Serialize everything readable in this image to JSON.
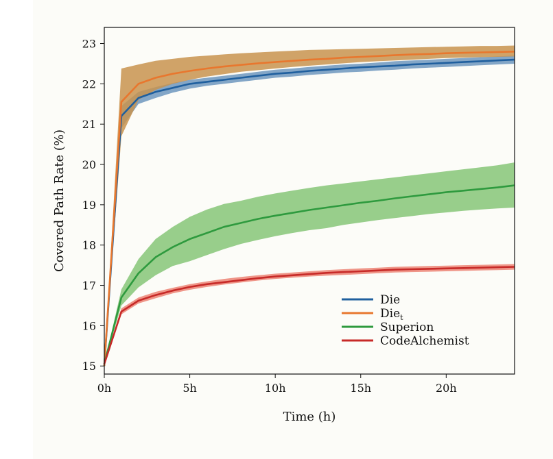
{
  "chart_data": {
    "type": "line",
    "xlabel": "Time (h)",
    "ylabel": "Covered Path Rate (%)",
    "xlim": [
      0,
      24
    ],
    "ylim": [
      14.8,
      23.4
    ],
    "x_ticks": [
      0,
      5,
      10,
      15,
      20
    ],
    "x_tick_labels": [
      "0h",
      "5h",
      "10h",
      "15h",
      "20h"
    ],
    "y_ticks": [
      15,
      16,
      17,
      18,
      19,
      20,
      21,
      22,
      23
    ],
    "y_tick_labels": [
      "15",
      "16",
      "17",
      "18",
      "19",
      "20",
      "21",
      "22",
      "23"
    ],
    "grid": false,
    "legend_position": "lower-right",
    "x": [
      0,
      1,
      2,
      3,
      4,
      5,
      6,
      7,
      8,
      9,
      10,
      11,
      12,
      13,
      14,
      15,
      16,
      17,
      18,
      19,
      20,
      21,
      22,
      23,
      24
    ],
    "series": [
      {
        "name": "DIE",
        "label_main": "Die",
        "label_sub": "",
        "color": "#1f5f9e",
        "values": [
          15.0,
          21.2,
          21.65,
          21.8,
          21.9,
          22.0,
          22.05,
          22.1,
          22.15,
          22.2,
          22.25,
          22.28,
          22.32,
          22.35,
          22.38,
          22.41,
          22.43,
          22.45,
          22.48,
          22.5,
          22.52,
          22.54,
          22.56,
          22.58,
          22.6
        ],
        "lower": [
          15.0,
          20.9,
          21.5,
          21.65,
          21.78,
          21.88,
          21.95,
          22.0,
          22.05,
          22.1,
          22.15,
          22.18,
          22.22,
          22.25,
          22.28,
          22.3,
          22.33,
          22.35,
          22.38,
          22.4,
          22.42,
          22.44,
          22.46,
          22.48,
          22.5
        ],
        "upper": [
          15.0,
          21.45,
          21.8,
          21.92,
          22.02,
          22.1,
          22.15,
          22.2,
          22.25,
          22.3,
          22.35,
          22.38,
          22.42,
          22.45,
          22.48,
          22.5,
          22.53,
          22.56,
          22.58,
          22.6,
          22.62,
          22.64,
          22.66,
          22.68,
          22.7
        ]
      },
      {
        "name": "DIEt",
        "label_main": "Die",
        "label_sub": "t",
        "color": "#e8772e",
        "values": [
          15.0,
          21.55,
          22.0,
          22.15,
          22.25,
          22.32,
          22.38,
          22.43,
          22.47,
          22.51,
          22.54,
          22.57,
          22.6,
          22.62,
          22.65,
          22.67,
          22.69,
          22.71,
          22.73,
          22.74,
          22.76,
          22.77,
          22.78,
          22.79,
          22.8
        ],
        "lower": [
          15.0,
          20.7,
          21.6,
          21.85,
          22.0,
          22.1,
          22.18,
          22.24,
          22.3,
          22.34,
          22.38,
          22.42,
          22.45,
          22.48,
          22.51,
          22.54,
          22.56,
          22.58,
          22.6,
          22.62,
          22.64,
          22.65,
          22.66,
          22.67,
          22.68
        ],
        "upper": [
          15.0,
          22.38,
          22.48,
          22.57,
          22.62,
          22.67,
          22.7,
          22.73,
          22.76,
          22.78,
          22.8,
          22.82,
          22.84,
          22.85,
          22.86,
          22.87,
          22.88,
          22.89,
          22.9,
          22.91,
          22.92,
          22.93,
          22.94,
          22.94,
          22.95
        ]
      },
      {
        "name": "Superion",
        "label_main": "Superion",
        "label_sub": "",
        "color": "#2e9a3e",
        "band_color": "#86c578",
        "values": [
          15.05,
          16.7,
          17.3,
          17.7,
          17.95,
          18.15,
          18.3,
          18.45,
          18.55,
          18.65,
          18.73,
          18.8,
          18.87,
          18.93,
          18.99,
          19.05,
          19.1,
          19.16,
          19.21,
          19.26,
          19.31,
          19.35,
          19.39,
          19.43,
          19.48
        ],
        "lower": [
          15.05,
          16.5,
          16.95,
          17.25,
          17.48,
          17.6,
          17.75,
          17.9,
          18.03,
          18.13,
          18.22,
          18.3,
          18.37,
          18.42,
          18.5,
          18.56,
          18.62,
          18.67,
          18.72,
          18.77,
          18.81,
          18.85,
          18.88,
          18.91,
          18.93
        ],
        "upper": [
          15.05,
          16.9,
          17.65,
          18.15,
          18.45,
          18.7,
          18.88,
          19.02,
          19.1,
          19.2,
          19.28,
          19.35,
          19.42,
          19.48,
          19.53,
          19.58,
          19.63,
          19.68,
          19.73,
          19.78,
          19.83,
          19.88,
          19.93,
          19.98,
          20.05
        ]
      },
      {
        "name": "CodeAlchemist",
        "label_main": "CodeAlchemist",
        "label_sub": "",
        "color": "#c72a28",
        "band_color": "#ec8476",
        "values": [
          15.05,
          16.35,
          16.62,
          16.76,
          16.87,
          16.96,
          17.03,
          17.08,
          17.13,
          17.18,
          17.22,
          17.25,
          17.28,
          17.31,
          17.33,
          17.35,
          17.37,
          17.39,
          17.4,
          17.41,
          17.42,
          17.43,
          17.44,
          17.45,
          17.46
        ],
        "lower": [
          15.05,
          16.28,
          16.55,
          16.68,
          16.8,
          16.89,
          16.96,
          17.02,
          17.07,
          17.12,
          17.16,
          17.19,
          17.22,
          17.24,
          17.26,
          17.28,
          17.3,
          17.32,
          17.33,
          17.34,
          17.35,
          17.36,
          17.37,
          17.38,
          17.39
        ],
        "upper": [
          15.05,
          16.43,
          16.7,
          16.84,
          16.94,
          17.03,
          17.1,
          17.16,
          17.21,
          17.25,
          17.29,
          17.32,
          17.35,
          17.38,
          17.4,
          17.42,
          17.44,
          17.46,
          17.47,
          17.48,
          17.49,
          17.5,
          17.51,
          17.52,
          17.53
        ]
      }
    ]
  }
}
